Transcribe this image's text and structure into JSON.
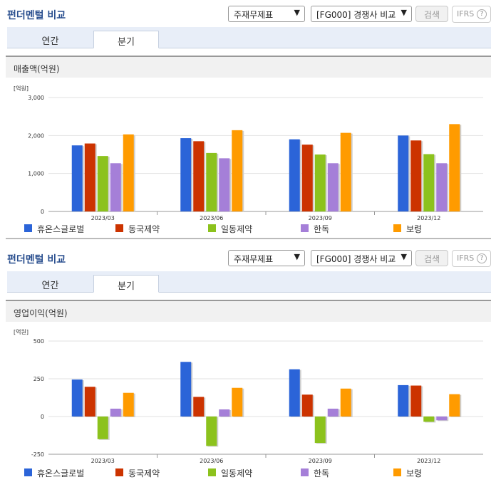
{
  "panels": [
    {
      "title": "펀더멘털 비교",
      "select_statement": "주재무제표",
      "select_compare": "[FG000] 경쟁사 비교",
      "search_label": "검색",
      "ifrs_label": "IFRS",
      "help_label": "?",
      "tabs": [
        "연간",
        "분기"
      ],
      "active_tab": "분기",
      "chart_title": "매출액(억원)",
      "unit": "[억원]"
    },
    {
      "title": "펀더멘털 비교",
      "select_statement": "주재무제표",
      "select_compare": "[FG000] 경쟁사 비교",
      "search_label": "검색",
      "ifrs_label": "IFRS",
      "help_label": "?",
      "tabs": [
        "연간",
        "분기"
      ],
      "active_tab": "분기",
      "chart_title": "영업이익(억원)",
      "unit": "[억원]"
    }
  ],
  "chart_data": [
    {
      "type": "bar",
      "title": "매출액(억원)",
      "ylabel": "[억원]",
      "categories": [
        "2023/03",
        "2023/06",
        "2023/09",
        "2023/12"
      ],
      "ylim": [
        0,
        3000
      ],
      "yticks": [
        0,
        1000,
        2000,
        3000
      ],
      "ytick_labels": [
        "0",
        "1,000",
        "2,000",
        "3,000"
      ],
      "grid": true,
      "legend_position": "bottom",
      "series": [
        {
          "name": "휴온스글로벌",
          "color": "#2b64d8",
          "values": [
            1740,
            1930,
            1900,
            2000
          ]
        },
        {
          "name": "동국제약",
          "color": "#cc3300",
          "values": [
            1790,
            1850,
            1760,
            1870
          ]
        },
        {
          "name": "일동제약",
          "color": "#8cc21d",
          "values": [
            1460,
            1540,
            1500,
            1510
          ]
        },
        {
          "name": "한독",
          "color": "#a57fd8",
          "values": [
            1270,
            1400,
            1270,
            1270
          ]
        },
        {
          "name": "보령",
          "color": "#ff9b00",
          "values": [
            2030,
            2140,
            2070,
            2300
          ]
        }
      ]
    },
    {
      "type": "bar",
      "title": "영업이익(억원)",
      "ylabel": "[억원]",
      "categories": [
        "2023/03",
        "2023/06",
        "2023/09",
        "2023/12"
      ],
      "ylim": [
        -250,
        500
      ],
      "yticks": [
        -250,
        0,
        250,
        500
      ],
      "ytick_labels": [
        "-250",
        "0",
        "250",
        "500"
      ],
      "grid": true,
      "legend_position": "bottom",
      "series": [
        {
          "name": "휴온스글로벌",
          "color": "#2b64d8",
          "values": [
            245,
            362,
            313,
            208
          ]
        },
        {
          "name": "동국제약",
          "color": "#cc3300",
          "values": [
            197,
            130,
            145,
            205
          ]
        },
        {
          "name": "일동제약",
          "color": "#8cc21d",
          "values": [
            -150,
            -195,
            -175,
            -35
          ]
        },
        {
          "name": "한독",
          "color": "#a57fd8",
          "values": [
            52,
            47,
            52,
            -25
          ]
        },
        {
          "name": "보령",
          "color": "#ff9b00",
          "values": [
            157,
            190,
            185,
            148
          ]
        }
      ]
    }
  ]
}
